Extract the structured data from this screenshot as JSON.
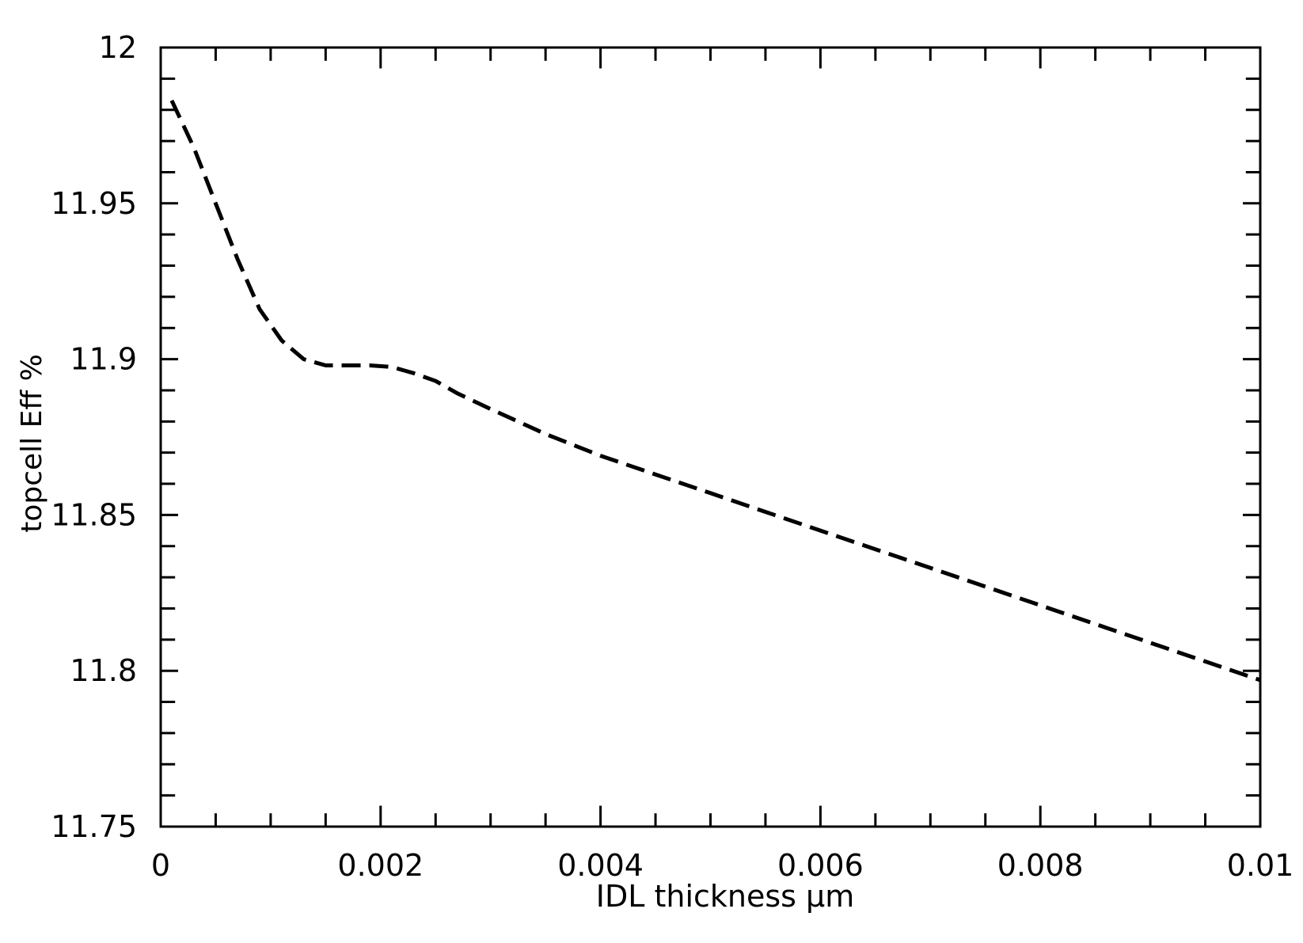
{
  "chart_data": {
    "type": "line",
    "title": "",
    "xlabel": "IDL thickness µm",
    "ylabel": "topcell Eff %",
    "xlim": [
      0,
      0.01
    ],
    "ylim": [
      11.75,
      12
    ],
    "x_ticks": [
      0,
      0.002,
      0.004,
      0.006,
      0.008,
      0.01
    ],
    "x_tick_labels": [
      "0",
      "0.002",
      "0.004",
      "0.006",
      "0.008",
      "0.01"
    ],
    "y_ticks": [
      11.75,
      11.8,
      11.85,
      11.9,
      11.95,
      12
    ],
    "y_tick_labels": [
      "11.75",
      "11.8",
      "11.85",
      "11.9",
      "11.95",
      "12"
    ],
    "grid": false,
    "line_style": "dashed",
    "line_color": "#000000",
    "series": [
      {
        "x": [
          0.0001,
          0.0003,
          0.0005,
          0.0007,
          0.0009,
          0.0011,
          0.0013,
          0.0015,
          0.0017,
          0.0019,
          0.0021,
          0.0023,
          0.0025,
          0.0027,
          0.003,
          0.0035,
          0.004,
          0.0045,
          0.005,
          0.0055,
          0.006,
          0.0065,
          0.007,
          0.0075,
          0.008,
          0.0085,
          0.009,
          0.0095,
          0.01
        ],
        "y": [
          11.983,
          11.968,
          11.95,
          11.932,
          11.916,
          11.906,
          11.9,
          11.898,
          11.898,
          11.898,
          11.8975,
          11.8955,
          11.893,
          11.889,
          11.884,
          11.876,
          11.869,
          11.863,
          11.857,
          11.851,
          11.845,
          11.839,
          11.833,
          11.827,
          11.821,
          11.815,
          11.809,
          11.803,
          11.797
        ]
      }
    ]
  }
}
